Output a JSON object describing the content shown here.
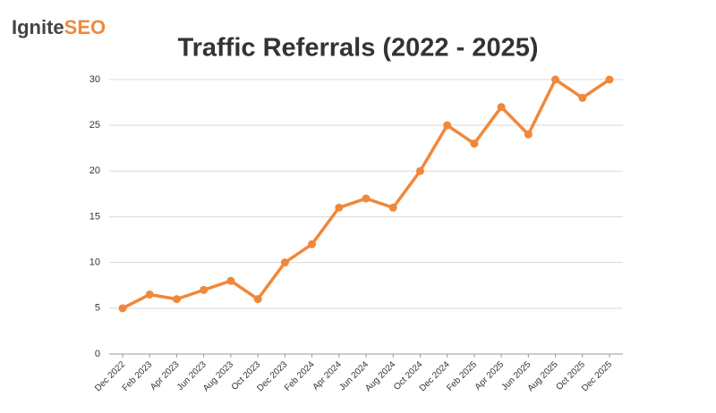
{
  "logo": {
    "dark": "Ignite",
    "accent": "SEO"
  },
  "chart_data": {
    "type": "line",
    "title": "Traffic Referrals (2022 - 2025)",
    "categories": [
      "Dec 2022",
      "Feb 2023",
      "Apr 2023",
      "Jun 2023",
      "Aug 2023",
      "Oct 2023",
      "Dec 2023",
      "Feb 2024",
      "Apr 2024",
      "Jun 2024",
      "Aug 2024",
      "Oct 2024",
      "Dec 2024",
      "Feb 2025",
      "Apr 2025",
      "Jun 2025",
      "Aug 2025",
      "Oct 2025",
      "Dec 2025"
    ],
    "series": [
      {
        "name": "Traffic Referrals",
        "color": "#f0883a",
        "values": [
          5,
          6.5,
          6,
          7,
          8,
          6,
          10,
          12,
          16,
          17,
          16,
          20,
          25,
          23,
          27,
          24,
          30,
          28,
          30
        ]
      }
    ],
    "ylim": [
      0,
      30
    ],
    "yticks": [
      0,
      5,
      10,
      15,
      20,
      25,
      30
    ],
    "grid": true
  }
}
